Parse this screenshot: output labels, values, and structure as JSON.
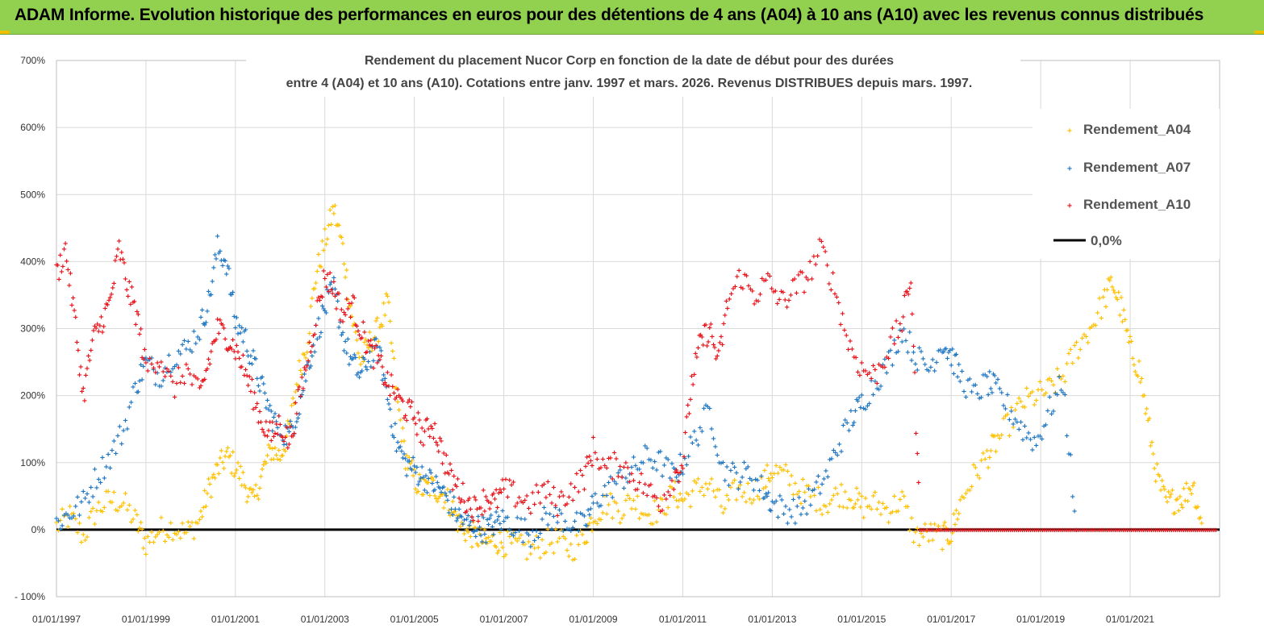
{
  "banner": {
    "title": "ADAM Informe. Evolution historique des performances en euros pour des détentions de 4 ans (A04) à 10 ans (A10) avec les revenus connus distribués",
    "background": "#92d050"
  },
  "chart_data": {
    "type": "scatter",
    "title_lines": [
      "Rendement du placement Nucor Corp en fonction de la date de début pour des durées",
      "entre 4 (A04) et 10 ans (A10). Cotations entre janv. 1997 et mars. 2026. Revenus DISTRIBUES depuis mars. 1997."
    ],
    "x_tick_labels": [
      "01/01/1997",
      "01/01/1999",
      "01/01/2001",
      "01/01/2003",
      "01/01/2005",
      "01/01/2007",
      "01/01/2009",
      "01/01/2011",
      "01/01/2013",
      "01/01/2015",
      "01/01/2017",
      "01/01/2019",
      "01/01/2021"
    ],
    "x_range": [
      "1997-01-01",
      "2023-01-01"
    ],
    "y_tick_labels": [
      "- 100%",
      "0%",
      "100%",
      "200%",
      "300%",
      "400%",
      "500%",
      "600%",
      "700%"
    ],
    "ylim": [
      -100,
      700
    ],
    "y_unit": "%",
    "grid": true,
    "legend_position": "top-right",
    "marker": "+",
    "series": [
      {
        "name": "Rendement_A04",
        "color": "#ffc000",
        "points": [
          [
            1997.0,
            5
          ],
          [
            1997.3,
            20
          ],
          [
            1997.6,
            -10
          ],
          [
            1997.9,
            30
          ],
          [
            1998.2,
            45
          ],
          [
            1998.5,
            40
          ],
          [
            1998.8,
            10
          ],
          [
            1999.0,
            -20
          ],
          [
            1999.3,
            0
          ],
          [
            1999.6,
            5
          ],
          [
            1999.9,
            -5
          ],
          [
            2000.2,
            15
          ],
          [
            2000.4,
            60
          ],
          [
            2000.6,
            90
          ],
          [
            2000.8,
            110
          ],
          [
            2001.0,
            95
          ],
          [
            2001.2,
            70
          ],
          [
            2001.4,
            40
          ],
          [
            2001.6,
            85
          ],
          [
            2001.8,
            120
          ],
          [
            2002.0,
            110
          ],
          [
            2002.2,
            150
          ],
          [
            2002.4,
            230
          ],
          [
            2002.6,
            280
          ],
          [
            2002.8,
            380
          ],
          [
            2003.0,
            430
          ],
          [
            2003.2,
            480
          ],
          [
            2003.4,
            420
          ],
          [
            2003.6,
            320
          ],
          [
            2003.8,
            250
          ],
          [
            2004.0,
            280
          ],
          [
            2004.2,
            300
          ],
          [
            2004.4,
            340
          ],
          [
            2004.6,
            200
          ],
          [
            2004.8,
            110
          ],
          [
            2005.0,
            75
          ],
          [
            2005.2,
            60
          ],
          [
            2005.4,
            65
          ],
          [
            2005.6,
            55
          ],
          [
            2005.8,
            40
          ],
          [
            2006.0,
            10
          ],
          [
            2006.2,
            -5
          ],
          [
            2006.4,
            -10
          ],
          [
            2006.6,
            -20
          ],
          [
            2006.8,
            -15
          ],
          [
            2007.0,
            -20
          ],
          [
            2007.3,
            -25
          ],
          [
            2007.6,
            -30
          ],
          [
            2007.9,
            -20
          ],
          [
            2008.2,
            -15
          ],
          [
            2008.5,
            -30
          ],
          [
            2008.8,
            -10
          ],
          [
            2009.0,
            20
          ],
          [
            2009.3,
            40
          ],
          [
            2009.6,
            30
          ],
          [
            2009.9,
            45
          ],
          [
            2010.2,
            25
          ],
          [
            2010.5,
            30
          ],
          [
            2010.8,
            55
          ],
          [
            2011.0,
            45
          ],
          [
            2011.3,
            60
          ],
          [
            2011.6,
            70
          ],
          [
            2011.9,
            30
          ],
          [
            2012.2,
            60
          ],
          [
            2012.5,
            55
          ],
          [
            2012.8,
            70
          ],
          [
            2013.0,
            90
          ],
          [
            2013.3,
            80
          ],
          [
            2013.6,
            60
          ],
          [
            2013.9,
            50
          ],
          [
            2014.2,
            40
          ],
          [
            2014.5,
            55
          ],
          [
            2014.8,
            50
          ],
          [
            2015.0,
            35
          ],
          [
            2015.3,
            40
          ],
          [
            2015.6,
            30
          ],
          [
            2015.9,
            45
          ],
          [
            2016.2,
            -10
          ],
          [
            2016.5,
            -5
          ],
          [
            2016.8,
            -10
          ],
          [
            2017.0,
            -5
          ],
          [
            2017.2,
            40
          ],
          [
            2017.5,
            80
          ],
          [
            2017.8,
            110
          ],
          [
            2018.0,
            130
          ],
          [
            2018.3,
            160
          ],
          [
            2018.6,
            190
          ],
          [
            2018.9,
            200
          ],
          [
            2019.2,
            210
          ],
          [
            2019.5,
            230
          ],
          [
            2019.8,
            270
          ],
          [
            2020.1,
            300
          ],
          [
            2020.4,
            340
          ],
          [
            2020.6,
            370
          ],
          [
            2020.8,
            330
          ],
          [
            2021.0,
            270
          ],
          [
            2021.2,
            240
          ],
          [
            2021.4,
            160
          ],
          [
            2021.6,
            80
          ],
          [
            2021.8,
            40
          ],
          [
            2022.0,
            45
          ],
          [
            2022.2,
            50
          ],
          [
            2022.4,
            70
          ],
          [
            2022.6,
            10
          ]
        ]
      },
      {
        "name": "Rendement_A07",
        "color": "#1f77c4",
        "points": [
          [
            1997.0,
            10
          ],
          [
            1997.3,
            25
          ],
          [
            1997.6,
            40
          ],
          [
            1997.9,
            80
          ],
          [
            1998.2,
            110
          ],
          [
            1998.5,
            150
          ],
          [
            1998.8,
            220
          ],
          [
            1999.0,
            250
          ],
          [
            1999.3,
            230
          ],
          [
            1999.6,
            260
          ],
          [
            1999.9,
            270
          ],
          [
            2000.2,
            300
          ],
          [
            2000.4,
            340
          ],
          [
            2000.6,
            420
          ],
          [
            2000.8,
            400
          ],
          [
            2001.0,
            310
          ],
          [
            2001.2,
            290
          ],
          [
            2001.4,
            250
          ],
          [
            2001.6,
            210
          ],
          [
            2001.8,
            170
          ],
          [
            2002.0,
            150
          ],
          [
            2002.2,
            140
          ],
          [
            2002.4,
            180
          ],
          [
            2002.6,
            240
          ],
          [
            2002.8,
            290
          ],
          [
            2003.0,
            330
          ],
          [
            2003.2,
            360
          ],
          [
            2003.4,
            290
          ],
          [
            2003.6,
            250
          ],
          [
            2003.8,
            230
          ],
          [
            2004.0,
            260
          ],
          [
            2004.2,
            270
          ],
          [
            2004.4,
            200
          ],
          [
            2004.6,
            130
          ],
          [
            2004.8,
            100
          ],
          [
            2005.0,
            90
          ],
          [
            2005.2,
            80
          ],
          [
            2005.4,
            70
          ],
          [
            2005.6,
            60
          ],
          [
            2005.8,
            40
          ],
          [
            2006.0,
            20
          ],
          [
            2006.2,
            10
          ],
          [
            2006.4,
            5
          ],
          [
            2006.6,
            0
          ],
          [
            2006.8,
            10
          ],
          [
            2007.0,
            15
          ],
          [
            2007.3,
            5
          ],
          [
            2007.6,
            -5
          ],
          [
            2007.9,
            15
          ],
          [
            2008.2,
            20
          ],
          [
            2008.5,
            10
          ],
          [
            2008.8,
            5
          ],
          [
            2009.0,
            40
          ],
          [
            2009.3,
            60
          ],
          [
            2009.6,
            75
          ],
          [
            2009.9,
            90
          ],
          [
            2010.2,
            110
          ],
          [
            2010.5,
            100
          ],
          [
            2010.8,
            80
          ],
          [
            2011.0,
            100
          ],
          [
            2011.3,
            140
          ],
          [
            2011.6,
            180
          ],
          [
            2011.9,
            90
          ],
          [
            2012.2,
            80
          ],
          [
            2012.5,
            85
          ],
          [
            2012.8,
            60
          ],
          [
            2013.0,
            40
          ],
          [
            2013.3,
            30
          ],
          [
            2013.6,
            30
          ],
          [
            2013.9,
            50
          ],
          [
            2014.2,
            80
          ],
          [
            2014.5,
            130
          ],
          [
            2014.8,
            170
          ],
          [
            2015.0,
            190
          ],
          [
            2015.3,
            220
          ],
          [
            2015.6,
            250
          ],
          [
            2015.9,
            300
          ],
          [
            2016.2,
            260
          ],
          [
            2016.5,
            240
          ],
          [
            2016.8,
            280
          ],
          [
            2017.0,
            260
          ],
          [
            2017.2,
            230
          ],
          [
            2017.5,
            200
          ],
          [
            2017.8,
            220
          ],
          [
            2018.0,
            210
          ],
          [
            2018.3,
            180
          ],
          [
            2018.6,
            150
          ],
          [
            2018.9,
            130
          ],
          [
            2019.2,
            180
          ],
          [
            2019.5,
            220
          ],
          [
            2019.8,
            0
          ]
        ]
      },
      {
        "name": "Rendement_A10",
        "color": "#e8141b",
        "points": [
          [
            1997.0,
            380
          ],
          [
            1997.2,
            420
          ],
          [
            1997.4,
            320
          ],
          [
            1997.6,
            200
          ],
          [
            1997.8,
            280
          ],
          [
            1998.0,
            310
          ],
          [
            1998.2,
            340
          ],
          [
            1998.4,
            420
          ],
          [
            1998.6,
            360
          ],
          [
            1998.8,
            320
          ],
          [
            1999.0,
            240
          ],
          [
            1999.3,
            260
          ],
          [
            1999.6,
            210
          ],
          [
            1999.9,
            240
          ],
          [
            2000.2,
            200
          ],
          [
            2000.4,
            250
          ],
          [
            2000.6,
            300
          ],
          [
            2000.8,
            290
          ],
          [
            2001.0,
            270
          ],
          [
            2001.2,
            240
          ],
          [
            2001.4,
            200
          ],
          [
            2001.6,
            160
          ],
          [
            2001.8,
            140
          ],
          [
            2002.0,
            160
          ],
          [
            2002.2,
            130
          ],
          [
            2002.4,
            190
          ],
          [
            2002.6,
            250
          ],
          [
            2002.8,
            320
          ],
          [
            2003.0,
            380
          ],
          [
            2003.2,
            360
          ],
          [
            2003.4,
            320
          ],
          [
            2003.6,
            340
          ],
          [
            2003.8,
            300
          ],
          [
            2004.0,
            270
          ],
          [
            2004.2,
            250
          ],
          [
            2004.4,
            220
          ],
          [
            2004.6,
            200
          ],
          [
            2004.8,
            180
          ],
          [
            2005.0,
            170
          ],
          [
            2005.2,
            140
          ],
          [
            2005.4,
            160
          ],
          [
            2005.6,
            120
          ],
          [
            2005.8,
            80
          ],
          [
            2006.0,
            60
          ],
          [
            2006.2,
            40
          ],
          [
            2006.4,
            30
          ],
          [
            2006.6,
            50
          ],
          [
            2006.8,
            40
          ],
          [
            2007.0,
            60
          ],
          [
            2007.3,
            50
          ],
          [
            2007.6,
            40
          ],
          [
            2007.9,
            60
          ],
          [
            2008.2,
            40
          ],
          [
            2008.5,
            60
          ],
          [
            2008.8,
            80
          ],
          [
            2009.0,
            120
          ],
          [
            2009.3,
            90
          ],
          [
            2009.6,
            100
          ],
          [
            2009.9,
            80
          ],
          [
            2010.2,
            60
          ],
          [
            2010.5,
            40
          ],
          [
            2010.8,
            80
          ],
          [
            2011.0,
            100
          ],
          [
            2011.2,
            220
          ],
          [
            2011.4,
            280
          ],
          [
            2011.6,
            300
          ],
          [
            2011.8,
            250
          ],
          [
            2012.0,
            340
          ],
          [
            2012.3,
            380
          ],
          [
            2012.6,
            350
          ],
          [
            2012.9,
            370
          ],
          [
            2013.2,
            340
          ],
          [
            2013.5,
            360
          ],
          [
            2013.8,
            380
          ],
          [
            2014.1,
            420
          ],
          [
            2014.4,
            360
          ],
          [
            2014.7,
            280
          ],
          [
            2015.0,
            240
          ],
          [
            2015.3,
            230
          ],
          [
            2015.6,
            270
          ],
          [
            2015.9,
            310
          ],
          [
            2016.1,
            380
          ],
          [
            2016.3,
            0
          ]
        ]
      },
      {
        "name": "0,0%",
        "color": "#000000",
        "values": [
          0
        ]
      }
    ]
  }
}
